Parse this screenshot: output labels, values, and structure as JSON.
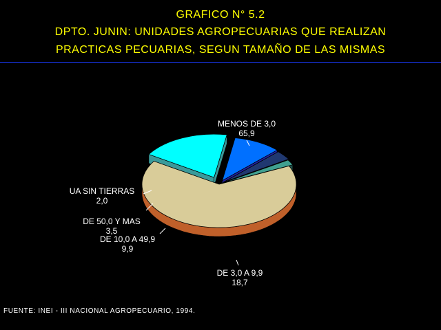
{
  "header": {
    "line1": "GRAFICO N° 5.2",
    "line2": "DPTO. JUNIN: UNIDADES AGROPECUARIAS QUE REALIZAN",
    "line3": "PRACTICAS PECUARIAS, SEGUN TAMAÑO DE LAS MISMAS"
  },
  "source": "FUENTE: INEI - III NACIONAL AGROPECUARIO, 1994.",
  "colors": {
    "background": "#000000",
    "title": "#ffff00",
    "rule": "#1a3aff",
    "text": "#ffffff"
  },
  "chart_data": {
    "type": "pie",
    "style": "3d-exploded",
    "slices": [
      {
        "name": "MENOS DE 3,0",
        "value": "65,9",
        "number": 65.9,
        "color": "#d9cc99",
        "side_color": "#c0602a"
      },
      {
        "name": "DE 3,0 A 9,9",
        "value": "18,7",
        "number": 18.7,
        "color": "#00ffff",
        "side_color": "#3a9a9a"
      },
      {
        "name": "DE 10,0 A 49,9",
        "value": "9,9",
        "number": 9.9,
        "color": "#0070ff",
        "side_color": "#2020a0"
      },
      {
        "name": "DE 50,0 Y MAS",
        "value": "3,5",
        "number": 3.5,
        "color": "#203870",
        "side_color": "#101c40"
      },
      {
        "name": "UA SIN TIERRAS",
        "value": "2,0",
        "number": 2.0,
        "color": "#40a090",
        "side_color": "#205048"
      }
    ]
  }
}
